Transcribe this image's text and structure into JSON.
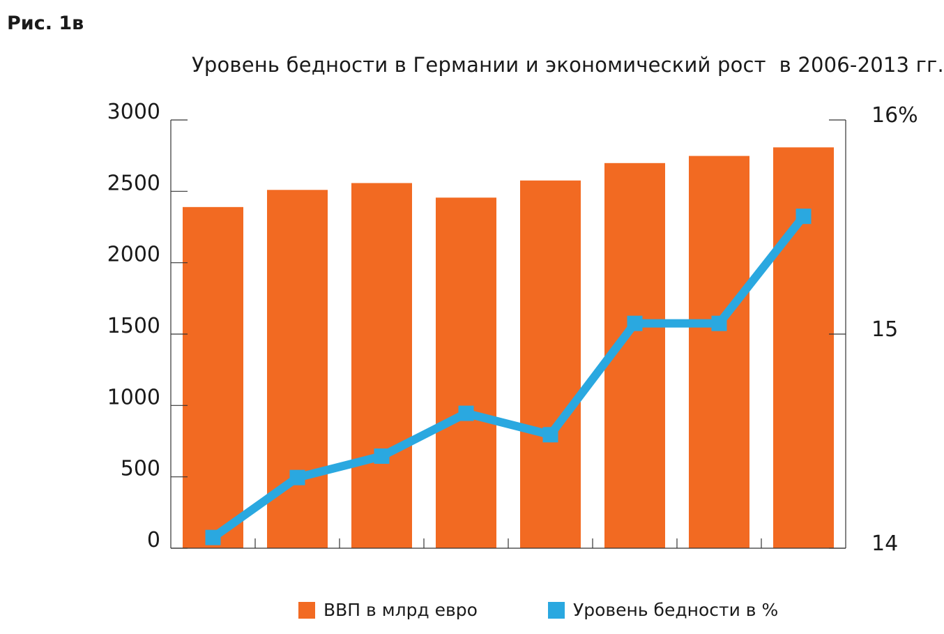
{
  "figure_label": "Рис. 1в",
  "colors": {
    "bars": "#f26a22",
    "line": "#2aa8e0",
    "axis": "#333333"
  },
  "chart_data": {
    "type": "bar",
    "title": "Уровень бедности в Германии и экономический рост  в 2006-2013 гг.",
    "categories": [
      "",
      "",
      "",
      "",
      "",
      "",
      "",
      ""
    ],
    "series": [
      {
        "name": "ВВП в млрд евро",
        "type": "bar",
        "axis": "left",
        "values": [
          2390,
          2510,
          2558,
          2456,
          2576,
          2698,
          2748,
          2808
        ]
      },
      {
        "name": "Уровень бедности в %",
        "type": "line",
        "axis": "right",
        "values": [
          14.05,
          14.33,
          14.43,
          14.63,
          14.53,
          15.05,
          15.05,
          15.55
        ]
      }
    ],
    "y_left": {
      "ylim": [
        0,
        3000
      ],
      "ticks": [
        "0",
        "500",
        "1000",
        "1500",
        "2000",
        "2500",
        "3000"
      ]
    },
    "y_right": {
      "ylim": [
        14,
        16
      ],
      "ticks": [
        "14",
        "15",
        "16%"
      ]
    },
    "legend": {
      "position": "bottom",
      "items": [
        "ВВП в млрд евро",
        "Уровень бедности в %"
      ]
    }
  }
}
